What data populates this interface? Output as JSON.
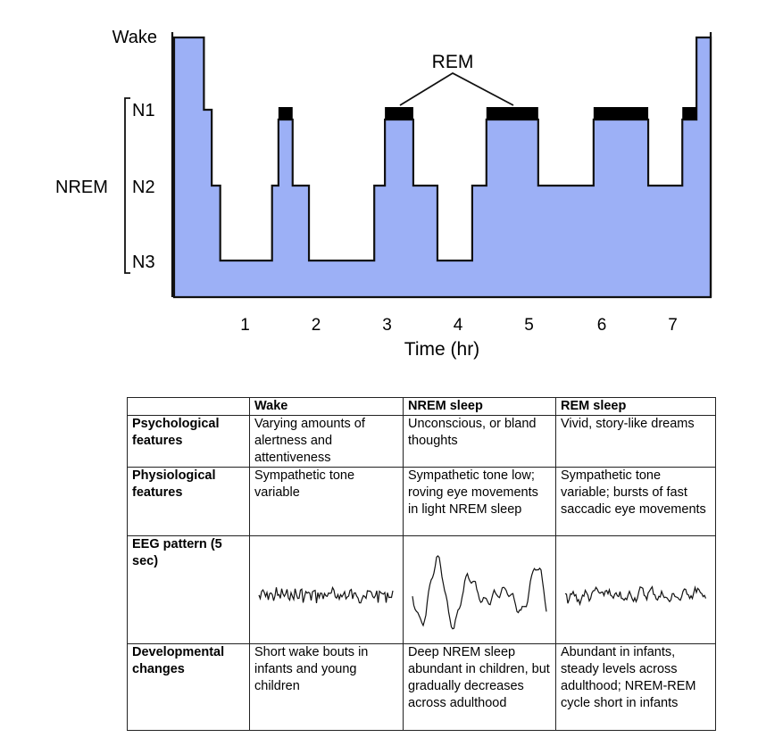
{
  "chart_data": {
    "type": "line",
    "subtype": "hypnogram-step",
    "xlabel": "Time (hr)",
    "ylabel": "",
    "x_ticks": [
      1,
      2,
      3,
      4,
      5,
      6,
      7
    ],
    "xlim": [
      0,
      7.56
    ],
    "y_levels": [
      "Wake",
      "N1",
      "N2",
      "N3"
    ],
    "y_group_label": "NREM",
    "annotation": "REM",
    "fill_color": "#9cb0f6",
    "rem_color": "#000000",
    "segments": [
      {
        "stage": "Wake",
        "start": 0,
        "end": 0.42
      },
      {
        "stage": "N1",
        "start": 0.42,
        "end": 0.53
      },
      {
        "stage": "N2",
        "start": 0.53,
        "end": 0.65
      },
      {
        "stage": "N3",
        "start": 0.65,
        "end": 1.38
      },
      {
        "stage": "N2",
        "start": 1.38,
        "end": 1.47
      },
      {
        "stage": "REM",
        "start": 1.47,
        "end": 1.67
      },
      {
        "stage": "N2",
        "start": 1.67,
        "end": 1.9
      },
      {
        "stage": "N3",
        "start": 1.9,
        "end": 2.82
      },
      {
        "stage": "N2",
        "start": 2.82,
        "end": 2.97
      },
      {
        "stage": "REM",
        "start": 2.97,
        "end": 3.37
      },
      {
        "stage": "N2",
        "start": 3.37,
        "end": 3.71
      },
      {
        "stage": "N3",
        "start": 3.71,
        "end": 4.2
      },
      {
        "stage": "N2",
        "start": 4.2,
        "end": 4.4
      },
      {
        "stage": "REM",
        "start": 4.4,
        "end": 5.13
      },
      {
        "stage": "N2",
        "start": 5.13,
        "end": 5.91
      },
      {
        "stage": "REM",
        "start": 5.91,
        "end": 6.68
      },
      {
        "stage": "N2",
        "start": 6.68,
        "end": 7.16
      },
      {
        "stage": "REM",
        "start": 7.16,
        "end": 7.36
      },
      {
        "stage": "Wake",
        "start": 7.36,
        "end": 7.56
      }
    ]
  },
  "table": {
    "headers": [
      "",
      "Wake",
      "NREM sleep",
      "REM sleep"
    ],
    "rows": [
      {
        "label": "Psychological features",
        "cells": [
          "Varying amounts of alertness and attentiveness",
          "Unconscious, or bland thoughts",
          "Vivid, story-like dreams"
        ]
      },
      {
        "label": "Physiological features",
        "cells": [
          "Sympathetic tone variable",
          "Sympathetic tone low; roving eye movements in light NREM sleep",
          "Sympathetic tone variable; bursts of fast saccadic eye movements"
        ]
      },
      {
        "label": "EEG pattern (5 sec)",
        "cells": [
          "",
          "",
          ""
        ]
      },
      {
        "label": "Developmental changes",
        "cells": [
          "Short wake bouts in infants and young children",
          "Deep NREM sleep abundant in children, but gradually decreases across adulthood",
          "Abundant in infants, steady levels across adulthood; NREM-REM cycle short in infants"
        ]
      }
    ]
  }
}
